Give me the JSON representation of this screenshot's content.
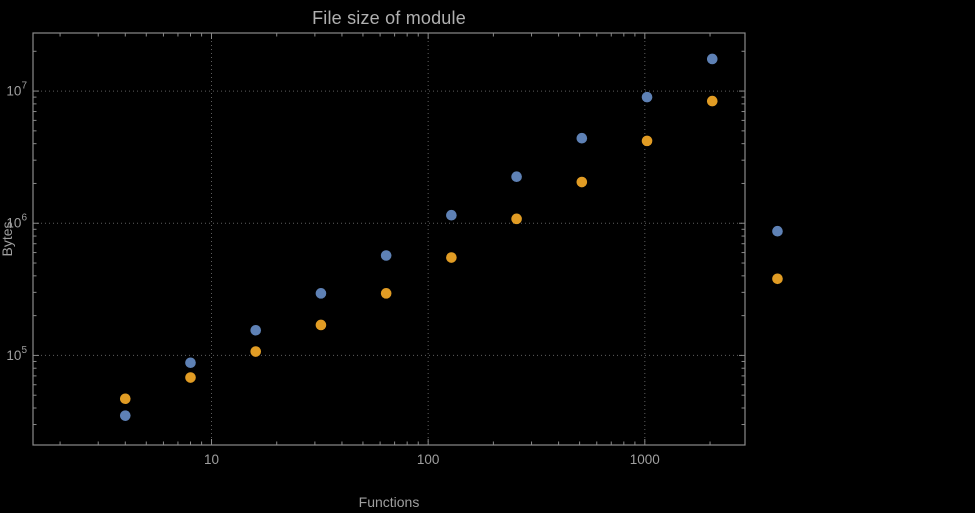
{
  "chart_data": {
    "type": "scatter",
    "title": "File size of module",
    "xlabel": "Functions",
    "ylabel": "Bytes",
    "x_scale": "log",
    "y_scale": "log",
    "xlim": [
      1.5,
      2900
    ],
    "ylim": [
      21000,
      27500000
    ],
    "grid": "dotted",
    "legend": "none",
    "x_major_ticks": [
      10,
      100,
      1000
    ],
    "x_tick_labels": [
      "10",
      "100",
      "1000"
    ],
    "y_major_ticks": [
      100000,
      1000000,
      10000000
    ],
    "y_tick_base": "10",
    "y_tick_exponents": [
      5,
      6,
      7
    ],
    "colors": {
      "background": "#000000",
      "frame": "#8a8a8a",
      "grid": "#5e5e5e",
      "text": "#9f9f9f",
      "title_text": "#b0b0b0"
    },
    "series": [
      {
        "name": "blue",
        "color": "#5E81B5",
        "x": [
          4,
          8,
          16,
          32,
          64,
          128,
          256,
          512,
          1024,
          2048,
          4096
        ],
        "y": [
          35000,
          88000,
          155000,
          295000,
          570000,
          1150000,
          2250000,
          4400000,
          9000000,
          17500000,
          870000
        ]
      },
      {
        "name": "orange",
        "color": "#E19C24",
        "x": [
          4,
          8,
          16,
          32,
          64,
          128,
          256,
          512,
          1024,
          2048,
          4096
        ],
        "y": [
          47000,
          68000,
          107000,
          170000,
          295000,
          550000,
          1080000,
          2050000,
          4200000,
          8400000,
          380000
        ]
      }
    ]
  }
}
